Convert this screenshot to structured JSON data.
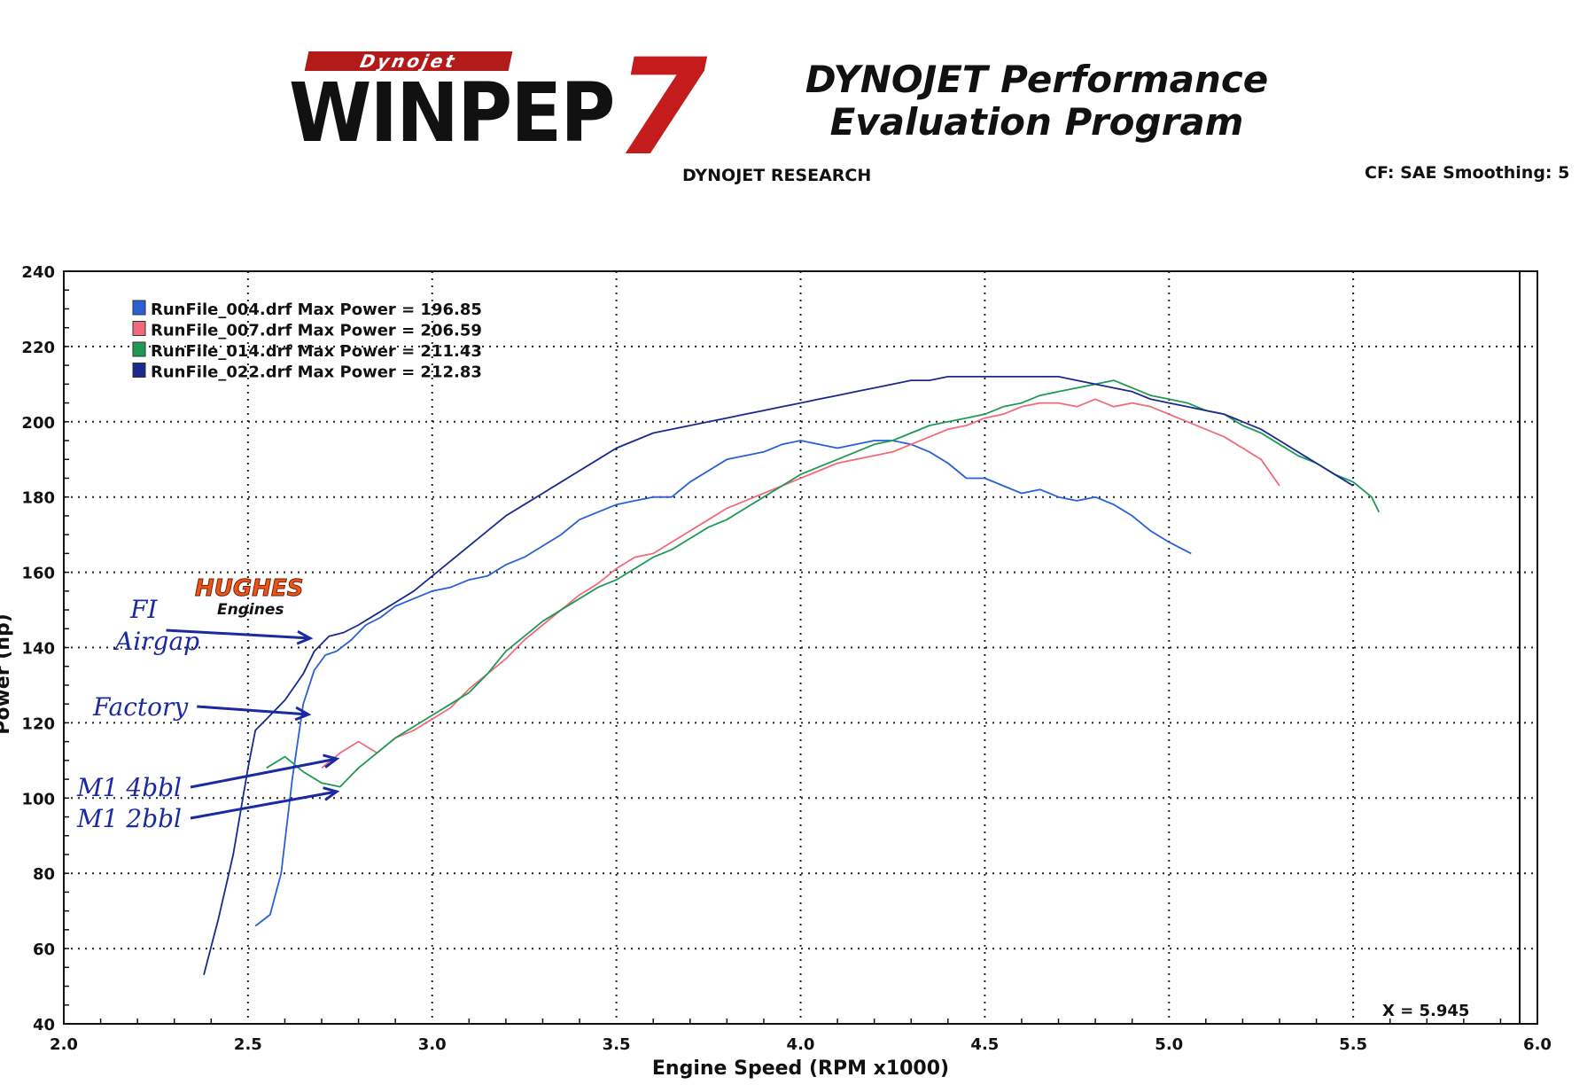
{
  "header": {
    "logo_small": "Dynojet",
    "logo_main": "WINPEP",
    "logo_number": "7",
    "title_line1": "DYNOJET Performance",
    "title_line2": "Evaluation Program",
    "subtitle": "DYNOJET RESEARCH",
    "settings": "CF: SAE  Smoothing: 5"
  },
  "chart_data": {
    "type": "line",
    "xlabel": "Engine Speed (RPM x1000)",
    "ylabel": "Power (hp)",
    "xlim": [
      2.0,
      6.0
    ],
    "ylim": [
      40,
      240
    ],
    "xticks": [
      2.0,
      2.5,
      3.0,
      3.5,
      4.0,
      4.5,
      5.0,
      5.5,
      6.0
    ],
    "yticks": [
      40,
      60,
      80,
      100,
      120,
      140,
      160,
      180,
      200,
      220,
      240
    ],
    "grid": true,
    "legend_position": "top-left",
    "cursor_label": "X = 5.945",
    "series": [
      {
        "name": "RunFile_004.drf Max Power = 196.85",
        "color": "#2a5fd6",
        "x": [
          2.52,
          2.56,
          2.59,
          2.62,
          2.65,
          2.68,
          2.71,
          2.74,
          2.78,
          2.82,
          2.86,
          2.9,
          2.95,
          3.0,
          3.05,
          3.1,
          3.15,
          3.2,
          3.25,
          3.3,
          3.35,
          3.4,
          3.45,
          3.5,
          3.55,
          3.6,
          3.65,
          3.7,
          3.75,
          3.8,
          3.85,
          3.9,
          3.95,
          4.0,
          4.05,
          4.1,
          4.15,
          4.2,
          4.25,
          4.3,
          4.35,
          4.4,
          4.45,
          4.5,
          4.55,
          4.6,
          4.65,
          4.7,
          4.75,
          4.8,
          4.85,
          4.9,
          4.95,
          5.0,
          5.06
        ],
        "values": [
          66,
          69,
          80,
          105,
          125,
          134,
          138,
          139,
          142,
          146,
          148,
          151,
          153,
          155,
          156,
          158,
          159,
          162,
          164,
          167,
          170,
          174,
          176,
          178,
          179,
          180,
          180,
          184,
          187,
          190,
          191,
          192,
          194,
          195,
          194,
          193,
          194,
          195,
          195,
          194,
          192,
          189,
          185,
          185,
          183,
          181,
          182,
          180,
          179,
          180,
          178,
          175,
          171,
          168,
          165
        ]
      },
      {
        "name": "RunFile_007.drf Max Power = 206.59",
        "color": "#ef6b7c",
        "x": [
          2.7,
          2.75,
          2.8,
          2.85,
          2.9,
          2.95,
          3.0,
          3.05,
          3.1,
          3.15,
          3.2,
          3.25,
          3.3,
          3.35,
          3.4,
          3.45,
          3.5,
          3.55,
          3.6,
          3.65,
          3.7,
          3.75,
          3.8,
          3.85,
          3.9,
          3.95,
          4.0,
          4.05,
          4.1,
          4.15,
          4.2,
          4.25,
          4.3,
          4.35,
          4.4,
          4.45,
          4.5,
          4.55,
          4.6,
          4.65,
          4.7,
          4.75,
          4.8,
          4.85,
          4.9,
          4.95,
          5.0,
          5.05,
          5.1,
          5.15,
          5.2,
          5.25,
          5.3
        ],
        "values": [
          108,
          112,
          115,
          112,
          116,
          118,
          121,
          124,
          129,
          133,
          137,
          142,
          146,
          150,
          154,
          157,
          161,
          164,
          165,
          168,
          171,
          174,
          177,
          179,
          181,
          183,
          185,
          187,
          189,
          190,
          191,
          192,
          194,
          196,
          198,
          199,
          201,
          202,
          204,
          205,
          205,
          204,
          206,
          204,
          205,
          204,
          202,
          200,
          198,
          196,
          193,
          190,
          183
        ]
      },
      {
        "name": "RunFile_014.drf Max Power = 211.43",
        "color": "#1e9a55",
        "x": [
          2.55,
          2.6,
          2.65,
          2.7,
          2.75,
          2.8,
          2.85,
          2.9,
          2.95,
          3.0,
          3.05,
          3.1,
          3.15,
          3.2,
          3.25,
          3.3,
          3.35,
          3.4,
          3.45,
          3.5,
          3.55,
          3.6,
          3.65,
          3.7,
          3.75,
          3.8,
          3.85,
          3.9,
          3.95,
          4.0,
          4.05,
          4.1,
          4.15,
          4.2,
          4.25,
          4.3,
          4.35,
          4.4,
          4.45,
          4.5,
          4.55,
          4.6,
          4.65,
          4.7,
          4.75,
          4.8,
          4.85,
          4.9,
          4.95,
          5.0,
          5.05,
          5.1,
          5.15,
          5.2,
          5.25,
          5.3,
          5.35,
          5.4,
          5.45,
          5.5,
          5.55,
          5.57
        ],
        "values": [
          108,
          111,
          107,
          104,
          103,
          108,
          112,
          116,
          119,
          122,
          125,
          128,
          133,
          139,
          143,
          147,
          150,
          153,
          156,
          158,
          161,
          164,
          166,
          169,
          172,
          174,
          177,
          180,
          183,
          186,
          188,
          190,
          192,
          194,
          195,
          197,
          199,
          200,
          201,
          202,
          204,
          205,
          207,
          208,
          209,
          210,
          211,
          209,
          207,
          206,
          205,
          203,
          202,
          199,
          197,
          194,
          191,
          189,
          186,
          184,
          180,
          176
        ]
      },
      {
        "name": "RunFile_022.drf Max Power = 212.83",
        "color": "#1a2a8c",
        "x": [
          2.38,
          2.42,
          2.46,
          2.5,
          2.52,
          2.55,
          2.6,
          2.65,
          2.68,
          2.72,
          2.76,
          2.8,
          2.85,
          2.9,
          2.95,
          3.0,
          3.05,
          3.1,
          3.15,
          3.2,
          3.25,
          3.3,
          3.35,
          3.4,
          3.45,
          3.5,
          3.55,
          3.6,
          3.65,
          3.7,
          3.75,
          3.8,
          3.85,
          3.9,
          3.95,
          4.0,
          4.05,
          4.1,
          4.15,
          4.2,
          4.25,
          4.3,
          4.35,
          4.4,
          4.45,
          4.5,
          4.55,
          4.6,
          4.65,
          4.7,
          4.75,
          4.8,
          4.85,
          4.9,
          4.95,
          5.0,
          5.05,
          5.1,
          5.15,
          5.2,
          5.25,
          5.3,
          5.35,
          5.4,
          5.45,
          5.5
        ],
        "values": [
          53,
          68,
          85,
          108,
          118,
          121,
          126,
          133,
          139,
          143,
          144,
          146,
          149,
          152,
          155,
          159,
          163,
          167,
          171,
          175,
          178,
          181,
          184,
          187,
          190,
          193,
          195,
          197,
          198,
          199,
          200,
          201,
          202,
          203,
          204,
          205,
          206,
          207,
          208,
          209,
          210,
          211,
          211,
          212,
          212,
          212,
          212,
          212,
          212,
          212,
          211,
          210,
          209,
          208,
          206,
          205,
          204,
          203,
          202,
          200,
          198,
          195,
          192,
          189,
          186,
          183
        ]
      }
    ],
    "annotations": [
      {
        "text": "FI",
        "target": "RunFile_022"
      },
      {
        "text": "Airgap",
        "target": "RunFile_022"
      },
      {
        "text": "Factory",
        "target": "RunFile_004"
      },
      {
        "text": "M1 4bbl",
        "target": "RunFile_007"
      },
      {
        "text": "M1 2bbl",
        "target": "RunFile_014"
      }
    ],
    "badge": {
      "line1": "HUGHES",
      "line2": "Engines"
    }
  }
}
